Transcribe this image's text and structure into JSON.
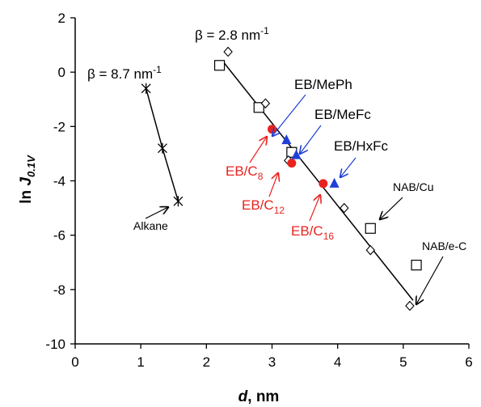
{
  "chart_data": {
    "type": "scatter",
    "xlabel": "d, nm",
    "ylabel": "ln J0.1V",
    "xlim": [
      0,
      6
    ],
    "ylim": [
      -10,
      2
    ],
    "xticks": [
      0,
      1,
      2,
      3,
      4,
      5,
      6
    ],
    "yticks": [
      2,
      0,
      -2,
      -4,
      -6,
      -8,
      -10
    ],
    "grid": false,
    "colors": {
      "red": "#e8231f",
      "blue": "#1f3fd6",
      "black": "#000000"
    },
    "series": [
      {
        "name": "Alkane",
        "marker": "asterisk",
        "color": "#000000",
        "x": [
          1.08,
          1.33,
          1.57
        ],
        "y": [
          -0.6,
          -2.8,
          -4.75
        ]
      },
      {
        "name": "NAB/Cu",
        "marker": "open-square",
        "color": "#000000",
        "x": [
          2.2,
          2.8,
          3.3,
          4.5
        ],
        "y": [
          0.25,
          -1.3,
          -2.95,
          -5.75
        ]
      },
      {
        "name": "NAB/e-C",
        "marker": "open-diamond",
        "color": "#000000",
        "x": [
          2.33,
          2.9,
          3.25,
          4.1,
          4.5,
          5.1
        ],
        "y": [
          0.75,
          -1.15,
          -3.25,
          -5.0,
          -6.55,
          -8.6
        ]
      },
      {
        "name": "NAB/e-C-square",
        "marker": "open-square",
        "color": "#000000",
        "x": [
          5.2
        ],
        "y": [
          -7.1
        ]
      },
      {
        "name": "EB/Cn",
        "marker": "filled-circle",
        "color": "#e8231f",
        "x": [
          3.0,
          3.3,
          3.78
        ],
        "y": [
          -2.1,
          -3.35,
          -4.1
        ]
      },
      {
        "name": "EB/MePh-MeFc-HxFc",
        "marker": "filled-triangle",
        "color": "#1f3fd6",
        "x": [
          3.22,
          3.37,
          3.95
        ],
        "y": [
          -2.5,
          -3.05,
          -4.1
        ]
      }
    ],
    "fit_lines": [
      {
        "label": "β = 8.7 nm",
        "label_sup": "-1",
        "x": [
          1.08,
          1.33,
          1.57
        ],
        "y": [
          -0.6,
          -2.8,
          -4.75
        ]
      },
      {
        "label": "β = 2.8 nm",
        "label_sup": "-1",
        "x": [
          2.25,
          5.15
        ],
        "y": [
          0.4,
          -8.4
        ]
      }
    ],
    "annotations": {
      "alkane": "Alkane",
      "nab_cu": "NAB/Cu",
      "nab_ec": "NAB/e-C",
      "eb_meph": "EB/MePh",
      "eb_mefc": "EB/MeFc",
      "eb_hxfc": "EB/HxFc",
      "eb_c8_main": "EB/C",
      "eb_c8_sub": "8",
      "eb_c12_main": "EB/C",
      "eb_c12_sub": "12",
      "eb_c16_main": "EB/C",
      "eb_c16_sub": "16"
    }
  }
}
